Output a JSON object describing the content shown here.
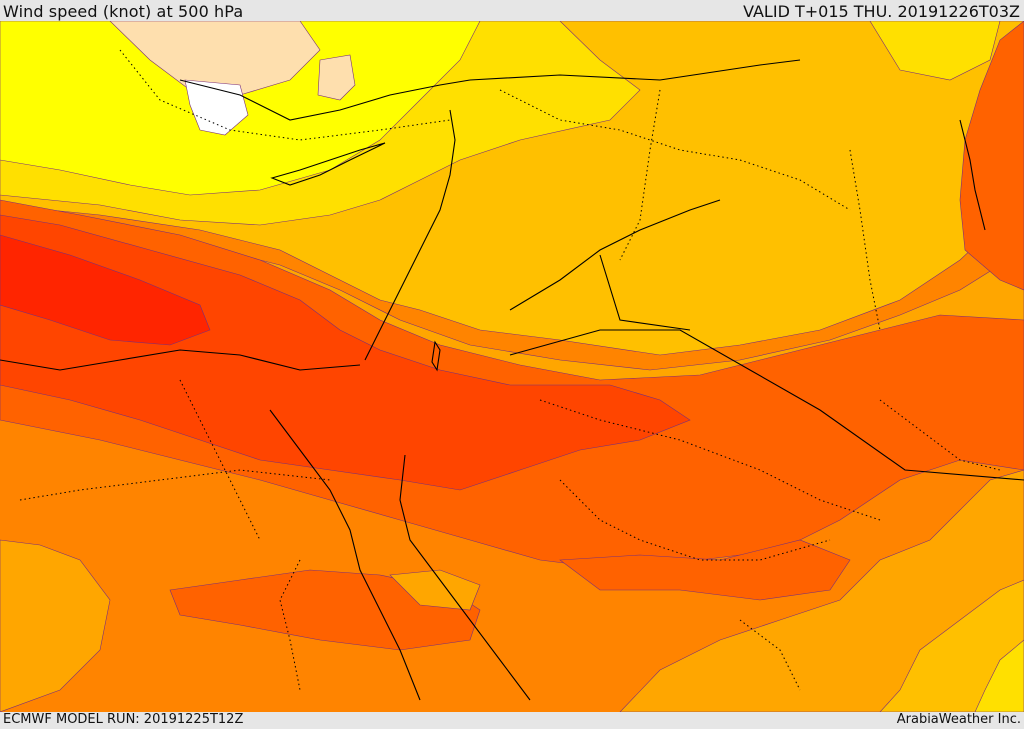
{
  "header": {
    "title": "Wind speed (knot) at 500 hPa",
    "valid": "VALID T+015 THU. 20191226T03Z"
  },
  "footer": {
    "model_run": "ECMWF MODEL RUN: 20191225T12Z",
    "credit": "ArabiaWeather Inc."
  },
  "colors": {
    "white": "#ffffff",
    "peach": "#fedfae",
    "yellow": "#ffff00",
    "gold": "#ffe000",
    "amber": "#ffc000",
    "light_orange": "#ffa600",
    "orange": "#ff8400",
    "dark_orange": "#ff6200",
    "red_orange": "#ff4500",
    "red": "#ff2500",
    "contour": "#7a2f7a",
    "coastline": "#000000",
    "border": "#000000"
  }
}
